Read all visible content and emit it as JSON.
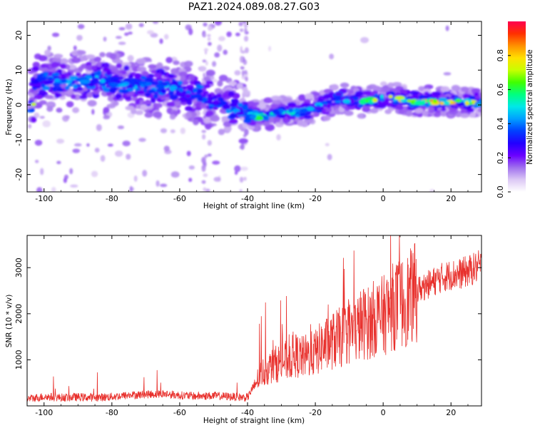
{
  "title": "PAZ1.2024.089.08.27.G03",
  "chart_data": [
    {
      "type": "heatmap",
      "xlabel": "Height of straight line (km)",
      "ylabel": "Frequency (Hz)",
      "xlim": [
        -105,
        29
      ],
      "ylim": [
        -25,
        24
      ],
      "xticks": [
        -100,
        -80,
        -60,
        -40,
        -20,
        0,
        20
      ],
      "yticks": [
        -20,
        -10,
        0,
        10,
        20
      ],
      "colorbar": {
        "label": "Normalized spectral amplitude",
        "range": [
          0,
          1
        ],
        "ticks": [
          0.0,
          0.2,
          0.4,
          0.6,
          0.8
        ],
        "colormap": [
          "#ffffff",
          "#dcc8f5",
          "#a070ee",
          "#6a00ff",
          "#2200ff",
          "#0040ff",
          "#00a0ff",
          "#00e8e8",
          "#00ff80",
          "#40ff00",
          "#c8ff00",
          "#ffe000",
          "#ff9000",
          "#ff3000",
          "#ff0050"
        ]
      },
      "ridge": [
        {
          "x": -103,
          "y": 6,
          "a": 0.35
        },
        {
          "x": -98,
          "y": 7,
          "a": 0.5
        },
        {
          "x": -94,
          "y": 6.5,
          "a": 0.45
        },
        {
          "x": -89,
          "y": 7,
          "a": 0.45
        },
        {
          "x": -84,
          "y": 7,
          "a": 0.5
        },
        {
          "x": -79,
          "y": 6.5,
          "a": 0.45
        },
        {
          "x": -74,
          "y": 6,
          "a": 0.45
        },
        {
          "x": -69,
          "y": 5,
          "a": 0.4
        },
        {
          "x": -64,
          "y": 5,
          "a": 0.45
        },
        {
          "x": -59,
          "y": 4,
          "a": 0.4
        },
        {
          "x": -54,
          "y": 3,
          "a": 0.35
        },
        {
          "x": -49,
          "y": 1,
          "a": 0.35
        },
        {
          "x": -45,
          "y": -1,
          "a": 0.4
        },
        {
          "x": -41,
          "y": -2.5,
          "a": 0.4
        },
        {
          "x": -36,
          "y": -3.5,
          "a": 0.6
        },
        {
          "x": -31,
          "y": -2,
          "a": 0.55
        },
        {
          "x": -26,
          "y": -2,
          "a": 0.5
        },
        {
          "x": -21,
          "y": -1,
          "a": 0.5
        },
        {
          "x": -17,
          "y": 0,
          "a": 0.4
        },
        {
          "x": -13,
          "y": 2,
          "a": 0.45
        },
        {
          "x": -9,
          "y": 1,
          "a": 0.6
        },
        {
          "x": -5,
          "y": 1,
          "a": 0.65
        },
        {
          "x": -1,
          "y": 2,
          "a": 0.7
        },
        {
          "x": 3,
          "y": 2,
          "a": 0.7
        },
        {
          "x": 8,
          "y": 1,
          "a": 0.85
        },
        {
          "x": 13,
          "y": 1,
          "a": 0.8
        },
        {
          "x": 18,
          "y": 1,
          "a": 0.8
        },
        {
          "x": 23,
          "y": 1,
          "a": 0.75
        },
        {
          "x": 28,
          "y": 0.5,
          "a": 0.7
        }
      ]
    },
    {
      "type": "line",
      "xlabel": "Height of straight line (km)",
      "ylabel": "SNR (10 * v/v)",
      "xlim": [
        -105,
        29
      ],
      "ylim": [
        0,
        3700
      ],
      "xticks": [
        -100,
        -80,
        -60,
        -40,
        -20,
        0,
        20
      ],
      "yticks": [
        1000,
        2000,
        3000
      ],
      "series": [
        {
          "color": "#e8302c",
          "x": [
            -105,
            -100,
            -95,
            -90,
            -85,
            -80,
            -75,
            -70,
            -65,
            -60,
            -55,
            -50,
            -45,
            -40,
            -38,
            -36,
            -34,
            -32,
            -30,
            -28,
            -26,
            -24,
            -22,
            -20,
            -18,
            -16,
            -14,
            -12,
            -10,
            -8,
            -6,
            -4,
            -2,
            0,
            2,
            4,
            6,
            8,
            10,
            12,
            14,
            16,
            18,
            20,
            22,
            24,
            26,
            29
          ],
          "y": [
            150,
            200,
            180,
            190,
            180,
            200,
            230,
            250,
            260,
            230,
            210,
            220,
            200,
            180,
            450,
            700,
            800,
            900,
            950,
            1000,
            1100,
            1050,
            1100,
            1150,
            1300,
            1350,
            1450,
            1500,
            1600,
            1650,
            1800,
            1800,
            1950,
            1950,
            2100,
            2200,
            2250,
            2350,
            2500,
            2600,
            2650,
            2750,
            2800,
            2850,
            2850,
            2900,
            2950,
            3050
          ]
        }
      ]
    }
  ]
}
